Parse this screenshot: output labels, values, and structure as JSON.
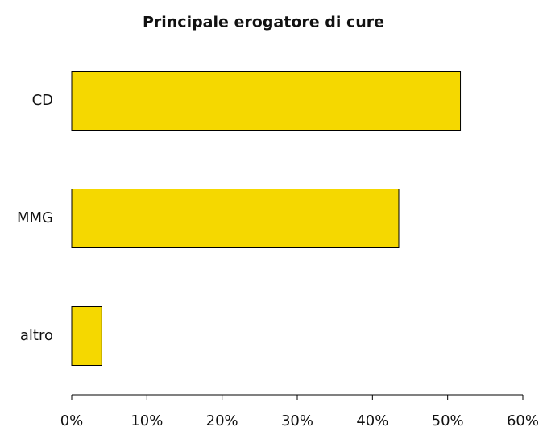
{
  "chart_data": {
    "type": "bar",
    "orientation": "horizontal",
    "title": "Principale erogatore di cure",
    "categories": [
      "CD",
      "MMG",
      "altro"
    ],
    "values": [
      51.7,
      43.5,
      4.0
    ],
    "color": "#f5d800",
    "xlim": [
      0,
      60
    ],
    "xticks": [
      {
        "value": 0,
        "label": "0%"
      },
      {
        "value": 10,
        "label": "10%"
      },
      {
        "value": 20,
        "label": "20%"
      },
      {
        "value": 30,
        "label": "30%"
      },
      {
        "value": 40,
        "label": "40%"
      },
      {
        "value": 50,
        "label": "50%"
      },
      {
        "value": 60,
        "label": "60%"
      }
    ],
    "grid": false
  }
}
